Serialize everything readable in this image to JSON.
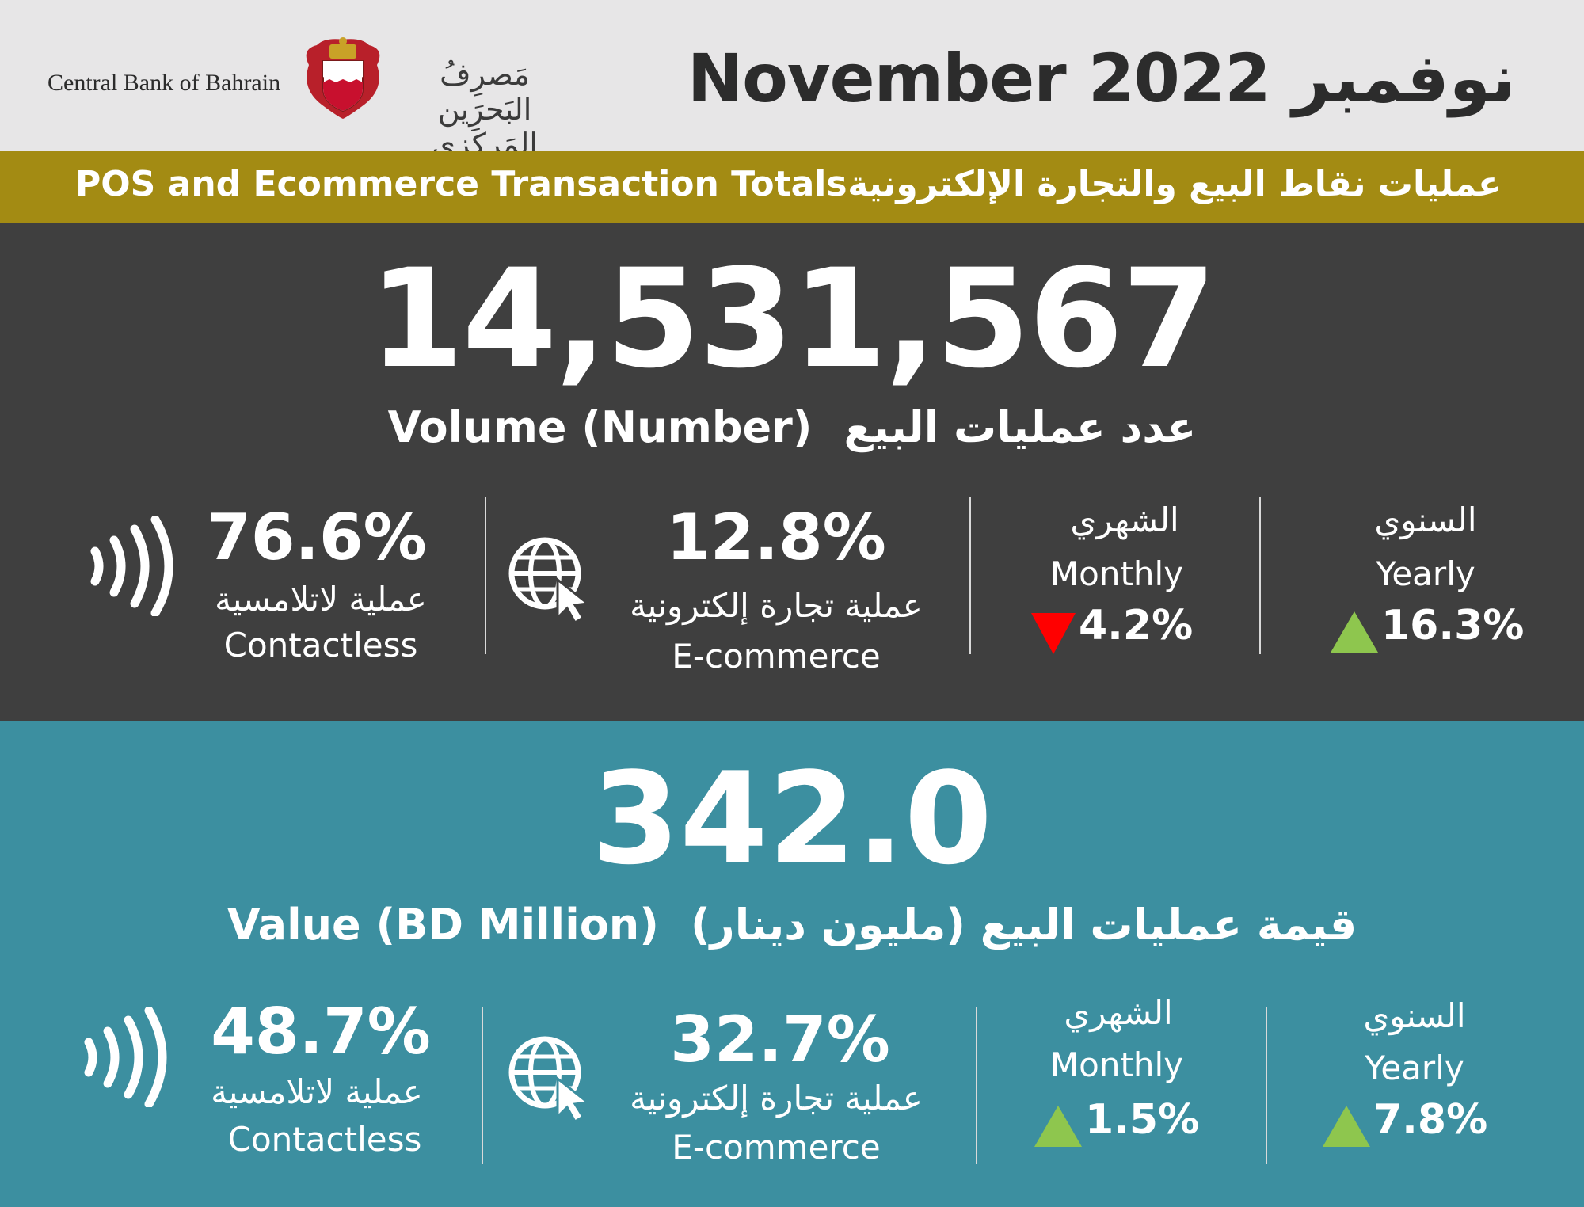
{
  "header": {
    "org_en": "Central Bank of Bahrain",
    "org_ar": "مَصرِفُ البَحرَين المَركَزي",
    "date_title": "November 2022 نوفمبر"
  },
  "banner": {
    "title_en": "POS and Ecommerce Transaction Totals",
    "title_ar": "عمليات نقاط البيع والتجارة الإلكترونية"
  },
  "volume": {
    "total": "14,531,567",
    "label_en": "Volume (Number)",
    "label_ar": "عدد عمليات البيع",
    "contactless": {
      "pct": "76.6%",
      "label_ar": "عملية لاتلامسية",
      "label_en": "Contactless"
    },
    "ecommerce": {
      "pct": "12.8%",
      "label_ar": "عملية تجارة إلكترونية",
      "label_en": "E-commerce"
    },
    "monthly": {
      "label_ar": "الشهري",
      "label_en": "Monthly",
      "change": "4.2%",
      "direction": "down"
    },
    "yearly": {
      "label_ar": "السنوي",
      "label_en": "Yearly",
      "change": "16.3%",
      "direction": "up"
    }
  },
  "value": {
    "total": "342.0",
    "label_en": "Value (BD Million)",
    "label_ar": "قيمة عمليات البيع (مليون دينار)",
    "contactless": {
      "pct": "48.7%",
      "label_ar": "عملية لاتلامسية",
      "label_en": "Contactless"
    },
    "ecommerce": {
      "pct": "32.7%",
      "label_ar": "عملية تجارة إلكترونية",
      "label_en": "E-commerce"
    },
    "monthly": {
      "label_ar": "الشهري",
      "label_en": "Monthly",
      "change": "1.5%",
      "direction": "up"
    },
    "yearly": {
      "label_ar": "السنوي",
      "label_en": "Yearly",
      "change": "7.8%",
      "direction": "up"
    }
  },
  "colors": {
    "banner": "#a38b13",
    "volume_panel": "#3f3f3f",
    "value_panel": "#3c8fa0",
    "down": "#ff0000",
    "up": "#8ec64e"
  }
}
